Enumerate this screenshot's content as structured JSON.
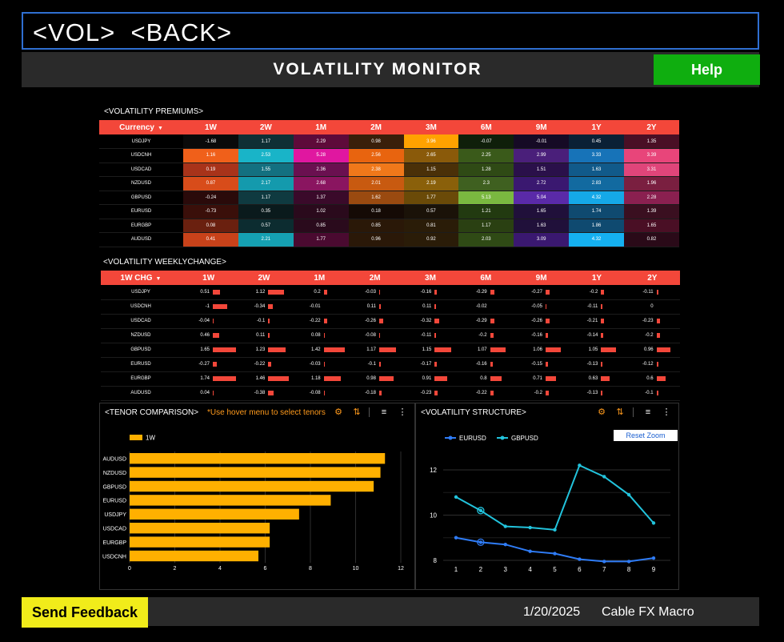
{
  "command": "<VOL>  <BACK>",
  "header": {
    "title": "VOLATILITY MONITOR",
    "help_label": "Help"
  },
  "colors": {
    "accent": "#f3473a",
    "help": "#0fae0f",
    "feedback": "#f1ec1a",
    "orange": "#ff9a1c",
    "eur": "#2f7cf6",
    "gbp": "#22c3dc",
    "bar": "#ffb000"
  },
  "premiums": {
    "label": "<VOLATILITY PREMIUMS>",
    "selector": "Currency",
    "tenors": [
      "1W",
      "2W",
      "1M",
      "2M",
      "3M",
      "6M",
      "9M",
      "1Y",
      "2Y"
    ],
    "rows": [
      {
        "pair": "USDJPY",
        "values": [
          "-1.68",
          "1.17",
          "2.29",
          "0.98",
          "3.96",
          "-0.07",
          "-0.01",
          "0.45",
          "1.35"
        ]
      },
      {
        "pair": "USDCNH",
        "values": [
          "1.16",
          "2.53",
          "5.28",
          "2.56",
          "2.65",
          "2.25",
          "2.99",
          "3.33",
          "3.39"
        ]
      },
      {
        "pair": "USDCAD",
        "values": [
          "0.19",
          "1.55",
          "2.36",
          "2.38",
          "1.15",
          "1.28",
          "1.51",
          "1.63",
          "3.31"
        ]
      },
      {
        "pair": "NZDUSD",
        "values": [
          "0.87",
          "2.17",
          "2.68",
          "2.01",
          "2.19",
          "2.3",
          "2.72",
          "2.83",
          "1.96"
        ]
      },
      {
        "pair": "GBPUSD",
        "values": [
          "-0.24",
          "1.17",
          "1.37",
          "1.62",
          "1.77",
          "5.13",
          "5.04",
          "4.32",
          "2.28"
        ]
      },
      {
        "pair": "EURUSD",
        "values": [
          "-0.73",
          "0.35",
          "1.02",
          "0.18",
          "0.57",
          "1.21",
          "1.65",
          "1.74",
          "1.39"
        ]
      },
      {
        "pair": "EURGBP",
        "values": [
          "0.08",
          "0.57",
          "0.85",
          "0.85",
          "0.81",
          "1.17",
          "1.63",
          "1.86",
          "1.65"
        ]
      },
      {
        "pair": "AUDUSD",
        "values": [
          "0.41",
          "2.21",
          "1.77",
          "0.96",
          "0.92",
          "2.03",
          "3.09",
          "4.32",
          "0.82"
        ]
      }
    ],
    "cell_colors": [
      [
        "#0a0a0a",
        "#0f2f35",
        "#5e0a3a",
        "#3a1f0a",
        "#ffa200",
        "#0f1f0a",
        "#160a25",
        "#0a2035",
        "#4a0f25"
      ],
      [
        "#f0601a",
        "#19b4c8",
        "#e017a0",
        "#e8640f",
        "#8a5a0a",
        "#3a5a1a",
        "#4a1f7a",
        "#1773b8",
        "#e8457a"
      ],
      [
        "#a8331a",
        "#137080",
        "#6a1050",
        "#f0781a",
        "#4a3008",
        "#2f4a15",
        "#2a104a",
        "#115a8a",
        "#e0457a"
      ],
      [
        "#d84c1a",
        "#149aad",
        "#8a1560",
        "#c85a10",
        "#8a600a",
        "#3f6020",
        "#3a1870",
        "#126aa0",
        "#7a1f40"
      ],
      [
        "#2a0a0a",
        "#0f3a40",
        "#3a0a2a",
        "#9a4a10",
        "#6a4a08",
        "#7ab840",
        "#5a2aa8",
        "#15a8e8",
        "#8a2050"
      ],
      [
        "#3a0f0a",
        "#0a1a1c",
        "#2a0a1c",
        "#150a05",
        "#1a1208",
        "#223a10",
        "#20103a",
        "#0f4a70",
        "#3a0f20"
      ],
      [
        "#6a200f",
        "#0c2c30",
        "#2a0a1c",
        "#2a1808",
        "#2a1c08",
        "#2a4012",
        "#20103a",
        "#0f4a70",
        "#4a0f25"
      ],
      [
        "#c8421a",
        "#15a0b2",
        "#4a0a30",
        "#2a1808",
        "#2a1c08",
        "#2f4a15",
        "#3a1870",
        "#15b0f0",
        "#2a0a18"
      ]
    ]
  },
  "weekly": {
    "label": "<VOLATILITY WEEKLYCHANGE>",
    "selector": "1W CHG",
    "tenors": [
      "1W",
      "2W",
      "1M",
      "2M",
      "3M",
      "6M",
      "9M",
      "1Y",
      "2Y"
    ],
    "rows": [
      {
        "pair": "USDJPY",
        "values": [
          0.51,
          1.12,
          0.2,
          -0.03,
          -0.16,
          -0.29,
          -0.27,
          -0.2,
          -0.11
        ]
      },
      {
        "pair": "USDCNH",
        "values": [
          -1,
          -0.34,
          -0.01,
          0.11,
          0.11,
          -0.02,
          -0.05,
          -0.11,
          0
        ]
      },
      {
        "pair": "USDCAD",
        "values": [
          -0.04,
          -0.1,
          -0.22,
          -0.26,
          -0.32,
          -0.29,
          -0.26,
          -0.21,
          -0.23
        ]
      },
      {
        "pair": "NZDUSD",
        "values": [
          0.46,
          0.11,
          0.08,
          -0.08,
          -0.11,
          -0.2,
          -0.16,
          -0.14,
          -0.2
        ]
      },
      {
        "pair": "GBPUSD",
        "values": [
          1.65,
          1.23,
          1.42,
          1.17,
          1.15,
          1.07,
          1.06,
          1.05,
          0.96
        ]
      },
      {
        "pair": "EURUSD",
        "values": [
          -0.27,
          -0.22,
          -0.03,
          -0.1,
          -0.17,
          -0.16,
          -0.15,
          -0.13,
          -0.12
        ]
      },
      {
        "pair": "EURGBP",
        "values": [
          1.74,
          1.46,
          1.18,
          0.98,
          0.91,
          0.8,
          0.71,
          0.63,
          0.6
        ]
      },
      {
        "pair": "AUDUSD",
        "values": [
          0.04,
          -0.38,
          -0.08,
          -0.18,
          -0.23,
          -0.22,
          -0.2,
          -0.13,
          -0.1
        ]
      }
    ]
  },
  "tenor_panel": {
    "title": "<TENOR COMPARISON>",
    "hint": "*Use hover menu to select tenors"
  },
  "structure_panel": {
    "title": "<VOLATILITY STRUCTURE>",
    "reset_label": "Reset Zoom"
  },
  "chart_data": [
    {
      "type": "bar",
      "orientation": "horizontal",
      "categories": [
        "AUDUSD",
        "NZDUSD",
        "GBPUSD",
        "EURUSD",
        "USDJPY",
        "USDCAD",
        "EURGBP",
        "USDCNH"
      ],
      "series": [
        {
          "name": "1W",
          "values": [
            11.3,
            11.1,
            10.8,
            8.9,
            7.5,
            6.2,
            6.2,
            5.7
          ]
        }
      ],
      "xlim": [
        0,
        12
      ],
      "xticks": [
        0,
        2,
        4,
        6,
        8,
        10,
        12
      ],
      "grid": true,
      "legend": "top-left"
    },
    {
      "type": "line",
      "x": [
        1,
        2,
        3,
        4,
        5,
        6,
        7,
        8,
        9
      ],
      "series": [
        {
          "name": "EURUSD",
          "values": [
            9.0,
            8.8,
            8.7,
            8.4,
            8.3,
            8.05,
            7.95,
            7.95,
            8.1
          ]
        },
        {
          "name": "GBPUSD",
          "values": [
            10.8,
            10.2,
            9.5,
            9.45,
            9.35,
            12.2,
            11.7,
            10.9,
            9.65
          ]
        }
      ],
      "ylim": [
        8,
        13
      ],
      "yticks": [
        8,
        10,
        12
      ],
      "grid": true,
      "legend": "top-left"
    }
  ],
  "footer": {
    "feedback_label": "Send Feedback",
    "date": "1/20/2025",
    "brand": "Cable FX Macro"
  }
}
